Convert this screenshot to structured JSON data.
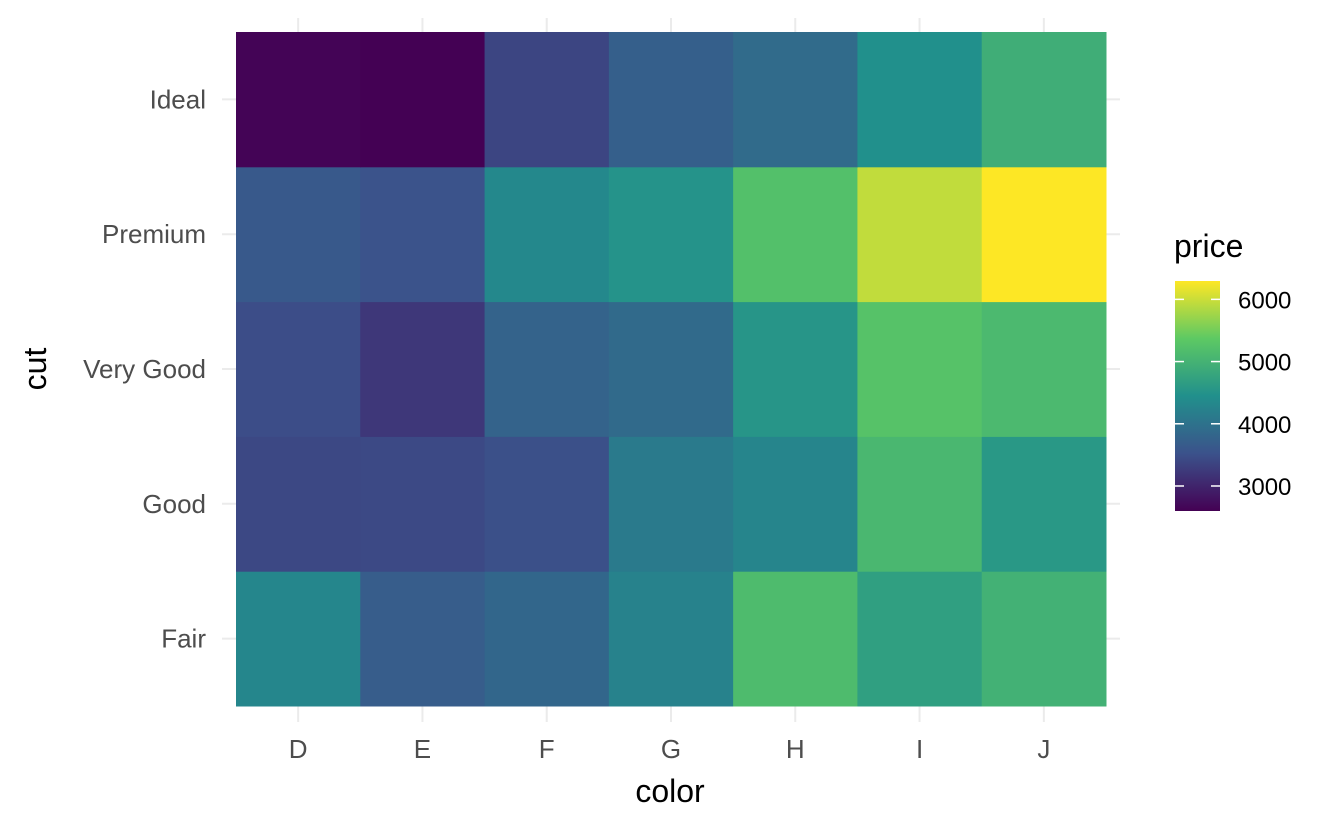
{
  "chart_data": {
    "type": "heatmap",
    "xlabel": "color",
    "ylabel": "cut",
    "x_categories": [
      "D",
      "E",
      "F",
      "G",
      "H",
      "I",
      "J"
    ],
    "y_categories": [
      "Fair",
      "Good",
      "Very Good",
      "Premium",
      "Ideal"
    ],
    "values": [
      [
        4291,
        3682,
        3827,
        4239,
        5136,
        4685,
        4976
      ],
      [
        3405,
        3424,
        3496,
        4123,
        4276,
        5079,
        4574
      ],
      [
        3470,
        3215,
        3779,
        3873,
        4535,
        5256,
        5104
      ],
      [
        3631,
        3539,
        4325,
        4501,
        5217,
        5946,
        6295
      ],
      [
        2629,
        2598,
        3375,
        3721,
        3889,
        4452,
        4918
      ]
    ],
    "legend": {
      "title": "price",
      "ticks": [
        3000,
        4000,
        5000,
        6000
      ],
      "min": 2598,
      "max": 6295,
      "placement": "right"
    },
    "grid": true,
    "colormap": [
      "#440154",
      "#3b528b",
      "#21908c",
      "#5dc963",
      "#fde725"
    ]
  }
}
